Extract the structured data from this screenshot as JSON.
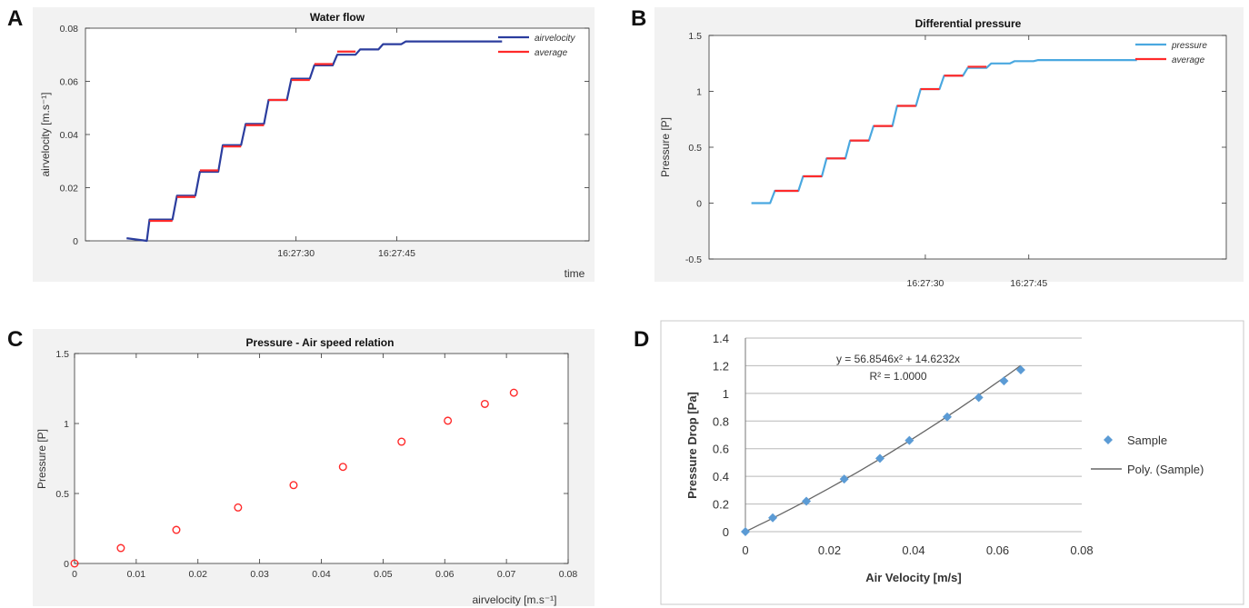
{
  "panels": {
    "A": "A",
    "B": "B",
    "C": "C",
    "D": "D"
  },
  "chart_data": [
    {
      "id": "A",
      "type": "line",
      "title": "Water flow",
      "xlabel": "time",
      "ylabel": "airvelocity [m.s⁻¹]",
      "xlim": [
        13,
        18.5
      ],
      "ylim": [
        0,
        0.08
      ],
      "yticks": [
        0,
        0.02,
        0.04,
        0.06,
        0.08
      ],
      "ytick_labels": [
        "0",
        "0.02",
        "0.04",
        "0.06",
        "0.08"
      ],
      "xtick_labels": [
        {
          "x": 15.3,
          "label": "16:27:30"
        },
        {
          "x": 16.4,
          "label": "16:27:45"
        }
      ],
      "x_sample": [
        13.45,
        13.67,
        13.7,
        13.95,
        14.0,
        14.2,
        14.25,
        14.45,
        14.5,
        14.7,
        14.75,
        14.95,
        15.0,
        15.2,
        15.25,
        15.45,
        15.5,
        15.7,
        15.75,
        15.95,
        16.0,
        16.2,
        16.25,
        16.45,
        16.5,
        16.7,
        16.75,
        16.95,
        17.0,
        17.2,
        17.25,
        17.55
      ],
      "series": [
        {
          "name": "airvelocity",
          "color": "#2b3d9e",
          "y": [
            0.001,
            0.0,
            0.008,
            0.008,
            0.017,
            0.017,
            0.026,
            0.026,
            0.036,
            0.036,
            0.044,
            0.044,
            0.053,
            0.053,
            0.061,
            0.061,
            0.066,
            0.066,
            0.07,
            0.07,
            0.072,
            0.072,
            0.074,
            0.074,
            0.075,
            0.075,
            0.075,
            0.075,
            0.075,
            0.075,
            0.075,
            0.075
          ]
        },
        {
          "name": "average",
          "color": "#ff2a2a",
          "levels": [
            [
              13.7,
              13.95,
              0.0075
            ],
            [
              14.0,
              14.2,
              0.0165
            ],
            [
              14.25,
              14.45,
              0.0265
            ],
            [
              14.5,
              14.7,
              0.0355
            ],
            [
              14.75,
              14.95,
              0.0435
            ],
            [
              15.0,
              15.2,
              0.053
            ],
            [
              15.25,
              15.45,
              0.0605
            ],
            [
              15.5,
              15.7,
              0.0665
            ],
            [
              15.75,
              15.95,
              0.0712
            ]
          ]
        }
      ],
      "legend": "top-right",
      "grid": false
    },
    {
      "id": "B",
      "type": "line",
      "title": "Differential pressure",
      "xlabel": "",
      "ylabel": "Pressure [P]",
      "xlim": [
        13,
        18.5
      ],
      "ylim": [
        -0.5,
        1.5
      ],
      "yticks": [
        -0.5,
        0,
        0.5,
        1,
        1.5
      ],
      "ytick_labels": [
        "-0.5",
        "0",
        "0.5",
        "1",
        "1.5"
      ],
      "xtick_labels": [
        {
          "x": 15.3,
          "label": "16:27:30"
        },
        {
          "x": 16.4,
          "label": "16:27:45"
        }
      ],
      "x_sample": [
        13.45,
        13.65,
        13.7,
        13.95,
        14.0,
        14.2,
        14.25,
        14.45,
        14.5,
        14.7,
        14.75,
        14.95,
        15.0,
        15.2,
        15.25,
        15.45,
        15.5,
        15.7,
        15.75,
        15.95,
        16.0,
        16.2,
        16.25,
        16.45,
        16.5,
        16.7,
        16.75,
        16.95,
        17.0,
        17.2,
        17.25,
        17.55
      ],
      "series": [
        {
          "name": "pressure",
          "color": "#4aa8e0",
          "y": [
            0.0,
            0.0,
            0.11,
            0.11,
            0.24,
            0.24,
            0.4,
            0.4,
            0.56,
            0.56,
            0.69,
            0.69,
            0.87,
            0.87,
            1.02,
            1.02,
            1.14,
            1.14,
            1.21,
            1.21,
            1.25,
            1.25,
            1.27,
            1.27,
            1.28,
            1.28,
            1.28,
            1.28,
            1.28,
            1.28,
            1.28,
            1.28
          ]
        },
        {
          "name": "average",
          "color": "#ff2a2a",
          "levels": [
            [
              13.7,
              13.95,
              0.11
            ],
            [
              14.0,
              14.2,
              0.24
            ],
            [
              14.25,
              14.45,
              0.4
            ],
            [
              14.5,
              14.7,
              0.56
            ],
            [
              14.75,
              14.95,
              0.69
            ],
            [
              15.0,
              15.2,
              0.87
            ],
            [
              15.25,
              15.45,
              1.02
            ],
            [
              15.5,
              15.7,
              1.14
            ],
            [
              15.75,
              15.95,
              1.22
            ]
          ]
        }
      ],
      "legend": "top-right",
      "grid": false
    },
    {
      "id": "C",
      "type": "scatter",
      "title": "Pressure - Air speed relation",
      "xlabel": "airvelocity [m.s⁻¹]",
      "ylabel": "Pressure [P]",
      "xlim": [
        0,
        0.08
      ],
      "ylim": [
        0,
        1.5
      ],
      "xticks": [
        0,
        0.01,
        0.02,
        0.03,
        0.04,
        0.05,
        0.06,
        0.07,
        0.08
      ],
      "xtick_labels": [
        "0",
        "0.01",
        "0.02",
        "0.03",
        "0.04",
        "0.05",
        "0.06",
        "0.07",
        "0.08"
      ],
      "yticks": [
        0,
        0.5,
        1,
        1.5
      ],
      "ytick_labels": [
        "0",
        "0.5",
        "1",
        "1.5"
      ],
      "series": [
        {
          "color": "#ff2a2a",
          "x": [
            0.0,
            0.0075,
            0.0165,
            0.0265,
            0.0355,
            0.0435,
            0.053,
            0.0605,
            0.0665,
            0.0712
          ],
          "y": [
            0.0,
            0.11,
            0.24,
            0.4,
            0.56,
            0.69,
            0.87,
            1.02,
            1.14,
            1.22
          ]
        }
      ],
      "grid": false
    },
    {
      "id": "D",
      "type": "scatter",
      "title": "",
      "xlabel": "Air Velocity [m/s]",
      "ylabel": "Pressure Drop [Pa]",
      "xlim": [
        0,
        0.08
      ],
      "ylim": [
        0,
        1.4
      ],
      "xticks": [
        0,
        0.02,
        0.04,
        0.06,
        0.08
      ],
      "xtick_labels": [
        "0",
        "0.02",
        "0.04",
        "0.06",
        "0.08"
      ],
      "yticks": [
        0,
        0.2,
        0.4,
        0.6,
        0.8,
        1,
        1.2,
        1.4
      ],
      "ytick_labels": [
        "0",
        "0.2",
        "0.4",
        "0.6",
        "0.8",
        "1",
        "1.2",
        "1.4"
      ],
      "equation": "y = 56.8546x² + 14.6232x",
      "r_squared": "R² = 1.0000",
      "series": [
        {
          "name": "Sample",
          "color": "#5b9bd5",
          "x": [
            0.0,
            0.0065,
            0.0145,
            0.0235,
            0.032,
            0.039,
            0.048,
            0.0555,
            0.0615,
            0.0655
          ],
          "y": [
            0.0,
            0.1,
            0.22,
            0.38,
            0.53,
            0.66,
            0.83,
            0.97,
            1.09,
            1.17
          ]
        },
        {
          "name": "Poly. (Sample)",
          "color": "#666666",
          "fit_coefficients": {
            "a2": 56.8546,
            "a1": 14.6232
          }
        }
      ],
      "legend": "right",
      "grid": true
    }
  ]
}
